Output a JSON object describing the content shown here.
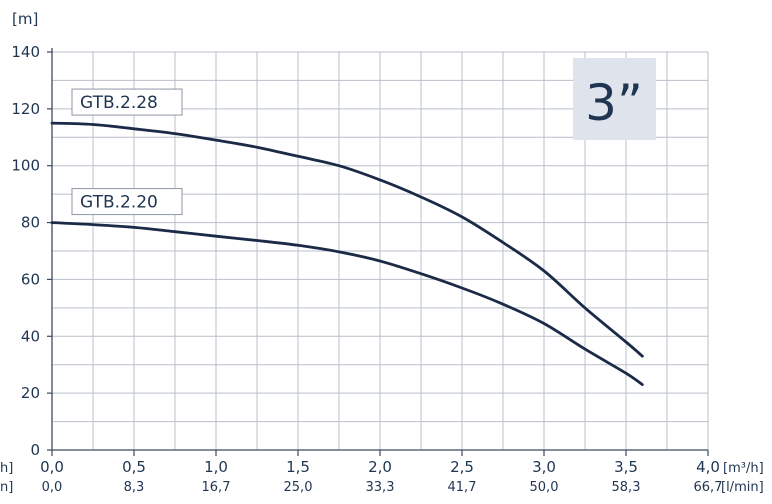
{
  "chart_data": {
    "type": "line",
    "badge": "3”",
    "y_unit": "[m]",
    "x_unit_primary": "[m³/h]",
    "x_unit_secondary": "[l/min]",
    "left_cut_primary": "h]",
    "left_cut_secondary": "n]",
    "ylim": [
      0,
      140
    ],
    "xlim": [
      0,
      4.0
    ],
    "y_ticks": [
      "0",
      "20",
      "40",
      "60",
      "80",
      "100",
      "120",
      "140"
    ],
    "x_ticks_primary": [
      "0,0",
      "0,5",
      "1,0",
      "1,5",
      "2,0",
      "2,5",
      "3,0",
      "3,5",
      "4,0"
    ],
    "x_ticks_secondary": [
      "0,0",
      "8,3",
      "16,7",
      "25,0",
      "33,3",
      "41,7",
      "50,0",
      "58,3",
      "66,7"
    ],
    "grid": true,
    "series": [
      {
        "name": "GTB.2.28",
        "color": "#1b2a47",
        "x": [
          0.0,
          0.25,
          0.5,
          0.75,
          1.0,
          1.25,
          1.5,
          1.75,
          2.0,
          2.25,
          2.5,
          2.75,
          3.0,
          3.25,
          3.5,
          3.6
        ],
        "y": [
          115,
          114.5,
          113,
          111.3,
          109,
          106.5,
          103.3,
          100,
          95,
          89,
          82,
          73,
          63,
          50,
          38,
          33
        ]
      },
      {
        "name": "GTB.2.20",
        "color": "#1b2a47",
        "x": [
          0.0,
          0.25,
          0.5,
          0.75,
          1.0,
          1.25,
          1.5,
          1.75,
          2.0,
          2.25,
          2.5,
          2.75,
          3.0,
          3.25,
          3.5,
          3.6
        ],
        "y": [
          80,
          79.3,
          78.3,
          76.8,
          75.2,
          73.7,
          72,
          69.7,
          66.5,
          62,
          57,
          51.3,
          44.5,
          35.5,
          27,
          23
        ]
      }
    ]
  }
}
